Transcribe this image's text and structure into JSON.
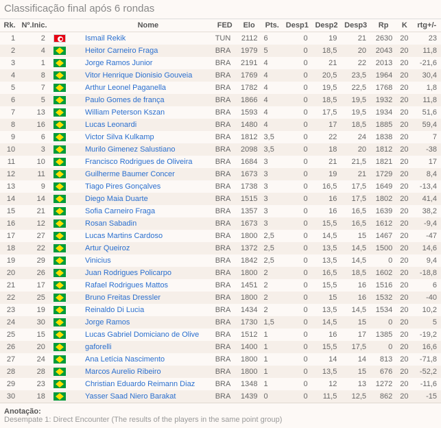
{
  "title": "Classificação final após 6 rondas",
  "columns": [
    "Rk.",
    "Nº.Inic.",
    "",
    "",
    "Nome",
    "FED",
    "Elo",
    "Pts.",
    "Desp1",
    "Desp2",
    "Desp3",
    "Rp",
    "K",
    "rtg+/-"
  ],
  "footer_label": "Anotação:",
  "footer_line": "Desempate 1: Direct Encounter (The results of the players in the same point group)",
  "rows": [
    {
      "rk": 1,
      "ni": 2,
      "flag": "tun",
      "name": "Ismail Rekik",
      "fed": "TUN",
      "elo": 2112,
      "pts": "6",
      "d1": "0",
      "d2": "19",
      "d3": "21",
      "rp": "2630",
      "k": "20",
      "rtg": "23"
    },
    {
      "rk": 2,
      "ni": 4,
      "flag": "bra",
      "name": "Heitor Carneiro Fraga",
      "fed": "BRA",
      "elo": 1979,
      "pts": "5",
      "d1": "0",
      "d2": "18,5",
      "d3": "20",
      "rp": "2043",
      "k": "20",
      "rtg": "11,8"
    },
    {
      "rk": 3,
      "ni": 1,
      "flag": "bra",
      "name": "Jorge Ramos Junior",
      "fed": "BRA",
      "elo": 2191,
      "pts": "4",
      "d1": "0",
      "d2": "21",
      "d3": "22",
      "rp": "2013",
      "k": "20",
      "rtg": "-21,6"
    },
    {
      "rk": 4,
      "ni": 8,
      "flag": "bra",
      "name": "Vitor Henrique Dionisio Gouveia",
      "fed": "BRA",
      "elo": 1769,
      "pts": "4",
      "d1": "0",
      "d2": "20,5",
      "d3": "23,5",
      "rp": "1964",
      "k": "20",
      "rtg": "30,4"
    },
    {
      "rk": 5,
      "ni": 7,
      "flag": "bra",
      "name": "Arthur Leonel Paganella",
      "fed": "BRA",
      "elo": 1782,
      "pts": "4",
      "d1": "0",
      "d2": "19,5",
      "d3": "22,5",
      "rp": "1768",
      "k": "20",
      "rtg": "1,8"
    },
    {
      "rk": 6,
      "ni": 5,
      "flag": "bra",
      "name": "Paulo Gomes de frança",
      "fed": "BRA",
      "elo": 1866,
      "pts": "4",
      "d1": "0",
      "d2": "18,5",
      "d3": "19,5",
      "rp": "1932",
      "k": "20",
      "rtg": "11,8"
    },
    {
      "rk": 7,
      "ni": 13,
      "flag": "bra",
      "name": "William Peterson Kszan",
      "fed": "BRA",
      "elo": 1593,
      "pts": "4",
      "d1": "0",
      "d2": "17,5",
      "d3": "19,5",
      "rp": "1934",
      "k": "20",
      "rtg": "51,6"
    },
    {
      "rk": 8,
      "ni": 16,
      "flag": "bra",
      "name": "Lucas Leonardi",
      "fed": "BRA",
      "elo": 1480,
      "pts": "4",
      "d1": "0",
      "d2": "17",
      "d3": "18,5",
      "rp": "1885",
      "k": "20",
      "rtg": "59,4"
    },
    {
      "rk": 9,
      "ni": 6,
      "flag": "bra",
      "name": "Victor Silva Kulkamp",
      "fed": "BRA",
      "elo": 1812,
      "pts": "3,5",
      "d1": "0",
      "d2": "22",
      "d3": "24",
      "rp": "1838",
      "k": "20",
      "rtg": "7"
    },
    {
      "rk": 10,
      "ni": 3,
      "flag": "bra",
      "name": "Murilo Gimenez Salustiano",
      "fed": "BRA",
      "elo": 2098,
      "pts": "3,5",
      "d1": "0",
      "d2": "18",
      "d3": "20",
      "rp": "1812",
      "k": "20",
      "rtg": "-38"
    },
    {
      "rk": 11,
      "ni": 10,
      "flag": "bra",
      "name": "Francisco Rodrigues de Oliveira",
      "fed": "BRA",
      "elo": 1684,
      "pts": "3",
      "d1": "0",
      "d2": "21",
      "d3": "21,5",
      "rp": "1821",
      "k": "20",
      "rtg": "17"
    },
    {
      "rk": 12,
      "ni": 11,
      "flag": "bra",
      "name": "Guilherme Baumer Concer",
      "fed": "BRA",
      "elo": 1673,
      "pts": "3",
      "d1": "0",
      "d2": "19",
      "d3": "21",
      "rp": "1729",
      "k": "20",
      "rtg": "8,4"
    },
    {
      "rk": 13,
      "ni": 9,
      "flag": "bra",
      "name": "Tiago Pires Gonçalves",
      "fed": "BRA",
      "elo": 1738,
      "pts": "3",
      "d1": "0",
      "d2": "16,5",
      "d3": "17,5",
      "rp": "1649",
      "k": "20",
      "rtg": "-13,4"
    },
    {
      "rk": 14,
      "ni": 14,
      "flag": "bra",
      "name": "Diego Maia Duarte",
      "fed": "BRA",
      "elo": 1515,
      "pts": "3",
      "d1": "0",
      "d2": "16",
      "d3": "17,5",
      "rp": "1802",
      "k": "20",
      "rtg": "41,4"
    },
    {
      "rk": 15,
      "ni": 21,
      "flag": "bra",
      "name": "Sofia Carneiro Fraga",
      "fed": "BRA",
      "elo": 1357,
      "pts": "3",
      "d1": "0",
      "d2": "16",
      "d3": "16,5",
      "rp": "1639",
      "k": "20",
      "rtg": "38,2"
    },
    {
      "rk": 16,
      "ni": 12,
      "flag": "bra",
      "name": "Rosan Sabadin",
      "fed": "BRA",
      "elo": 1673,
      "pts": "3",
      "d1": "0",
      "d2": "15,5",
      "d3": "16,5",
      "rp": "1612",
      "k": "20",
      "rtg": "-9,4"
    },
    {
      "rk": 17,
      "ni": 27,
      "flag": "bra",
      "name": "Lucas Martins Cardoso",
      "fed": "BRA",
      "elo": 1800,
      "pts": "2,5",
      "d1": "0",
      "d2": "14,5",
      "d3": "15",
      "rp": "1467",
      "k": "20",
      "rtg": "-47"
    },
    {
      "rk": 18,
      "ni": 22,
      "flag": "bra",
      "name": "Artur Queiroz",
      "fed": "BRA",
      "elo": 1372,
      "pts": "2,5",
      "d1": "0",
      "d2": "13,5",
      "d3": "14,5",
      "rp": "1500",
      "k": "20",
      "rtg": "14,6"
    },
    {
      "rk": 19,
      "ni": 29,
      "flag": "bra",
      "name": "Vinicius",
      "fed": "BRA",
      "elo": 1842,
      "pts": "2,5",
      "d1": "0",
      "d2": "13,5",
      "d3": "14,5",
      "rp": "0",
      "k": "20",
      "rtg": "9,4"
    },
    {
      "rk": 20,
      "ni": 26,
      "flag": "bra",
      "name": "Juan Rodrigues Policarpo",
      "fed": "BRA",
      "elo": 1800,
      "pts": "2",
      "d1": "0",
      "d2": "16,5",
      "d3": "18,5",
      "rp": "1602",
      "k": "20",
      "rtg": "-18,8"
    },
    {
      "rk": 21,
      "ni": 17,
      "flag": "bra",
      "name": "Rafael Rodrigues Mattos",
      "fed": "BRA",
      "elo": 1451,
      "pts": "2",
      "d1": "0",
      "d2": "15,5",
      "d3": "16",
      "rp": "1516",
      "k": "20",
      "rtg": "6"
    },
    {
      "rk": 22,
      "ni": 25,
      "flag": "bra",
      "name": "Bruno Freitas Dressler",
      "fed": "BRA",
      "elo": 1800,
      "pts": "2",
      "d1": "0",
      "d2": "15",
      "d3": "16",
      "rp": "1532",
      "k": "20",
      "rtg": "-40"
    },
    {
      "rk": 23,
      "ni": 19,
      "flag": "bra",
      "name": "Reinaldo Di Lucia",
      "fed": "BRA",
      "elo": 1434,
      "pts": "2",
      "d1": "0",
      "d2": "13,5",
      "d3": "14,5",
      "rp": "1534",
      "k": "20",
      "rtg": "10,2"
    },
    {
      "rk": 24,
      "ni": 30,
      "flag": "bra",
      "name": "Jorge Ramos",
      "fed": "BRA",
      "elo": 1730,
      "pts": "1,5",
      "d1": "0",
      "d2": "14,5",
      "d3": "15",
      "rp": "0",
      "k": "20",
      "rtg": "5"
    },
    {
      "rk": 25,
      "ni": 15,
      "flag": "bra",
      "name": "Lucas Gabriel Domiciano de Olive",
      "fed": "BRA",
      "elo": 1512,
      "pts": "1",
      "d1": "0",
      "d2": "16",
      "d3": "17",
      "rp": "1385",
      "k": "20",
      "rtg": "-19,2"
    },
    {
      "rk": 26,
      "ni": 20,
      "flag": "bra",
      "name": "gaforelli",
      "fed": "BRA",
      "elo": 1400,
      "pts": "1",
      "d1": "0",
      "d2": "15,5",
      "d3": "17,5",
      "rp": "0",
      "k": "20",
      "rtg": "16,6"
    },
    {
      "rk": 27,
      "ni": 24,
      "flag": "bra",
      "name": "Ana Letícia Nascimento",
      "fed": "BRA",
      "elo": 1800,
      "pts": "1",
      "d1": "0",
      "d2": "14",
      "d3": "14",
      "rp": "813",
      "k": "20",
      "rtg": "-71,8"
    },
    {
      "rk": 28,
      "ni": 28,
      "flag": "bra",
      "name": "Marcos Aurelio Ribeiro",
      "fed": "BRA",
      "elo": 1800,
      "pts": "1",
      "d1": "0",
      "d2": "13,5",
      "d3": "15",
      "rp": "676",
      "k": "20",
      "rtg": "-52,2"
    },
    {
      "rk": 29,
      "ni": 23,
      "flag": "bra",
      "name": "Christian Eduardo Reimann Diaz",
      "fed": "BRA",
      "elo": 1348,
      "pts": "1",
      "d1": "0",
      "d2": "12",
      "d3": "13",
      "rp": "1272",
      "k": "20",
      "rtg": "-11,6"
    },
    {
      "rk": 30,
      "ni": 18,
      "flag": "bra",
      "name": "Yasser Saad Niero Barakat",
      "fed": "BRA",
      "elo": 1439,
      "pts": "0",
      "d1": "0",
      "d2": "11,5",
      "d3": "12,5",
      "rp": "862",
      "k": "20",
      "rtg": "-15"
    }
  ]
}
